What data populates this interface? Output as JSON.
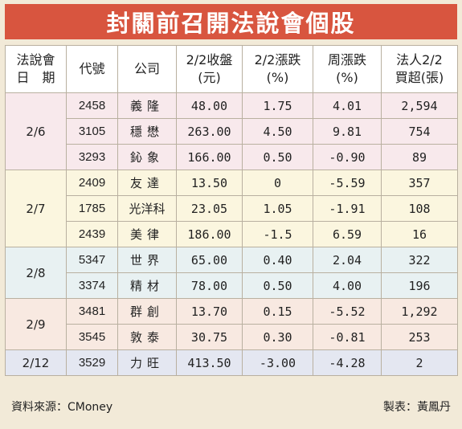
{
  "title": "封關前召開法說會個股",
  "headers": {
    "date_line1": "法說會",
    "date_line2": "日　期",
    "code": "代號",
    "company": "公司",
    "close_line1": "2/2收盤",
    "close_line2": "(元)",
    "chg_line1": "2/2漲跌",
    "chg_line2": "(%)",
    "week_line1": "周漲跌",
    "week_line2": "(%)",
    "inst_line1": "法人2/2",
    "inst_line2": "買超(張)"
  },
  "groups": [
    {
      "date": "2/6",
      "rows": [
        {
          "code": "2458",
          "company": "義隆",
          "close": "48.00",
          "chg": "1.75",
          "week": "4.01",
          "inst": "2,594"
        },
        {
          "code": "3105",
          "company": "穩懋",
          "close": "263.00",
          "chg": "4.50",
          "week": "9.81",
          "inst": "754"
        },
        {
          "code": "3293",
          "company": "鈊象",
          "close": "166.00",
          "chg": "0.50",
          "week": "-0.90",
          "inst": "89"
        }
      ]
    },
    {
      "date": "2/7",
      "rows": [
        {
          "code": "2409",
          "company": "友達",
          "close": "13.50",
          "chg": "0",
          "week": "-5.59",
          "inst": "357"
        },
        {
          "code": "1785",
          "company": "光洋科",
          "close": "23.05",
          "chg": "1.05",
          "week": "-1.91",
          "inst": "108"
        },
        {
          "code": "2439",
          "company": "美律",
          "close": "186.00",
          "chg": "-1.5",
          "week": "6.59",
          "inst": "16"
        }
      ]
    },
    {
      "date": "2/8",
      "rows": [
        {
          "code": "5347",
          "company": "世界",
          "close": "65.00",
          "chg": "0.40",
          "week": "2.04",
          "inst": "322"
        },
        {
          "code": "3374",
          "company": "精材",
          "close": "78.00",
          "chg": "0.50",
          "week": "4.00",
          "inst": "196"
        }
      ]
    },
    {
      "date": "2/9",
      "rows": [
        {
          "code": "3481",
          "company": "群創",
          "close": "13.70",
          "chg": "0.15",
          "week": "-5.52",
          "inst": "1,292"
        },
        {
          "code": "3545",
          "company": "敦泰",
          "close": "30.75",
          "chg": "0.30",
          "week": "-0.81",
          "inst": "253"
        }
      ]
    },
    {
      "date": "2/12",
      "rows": [
        {
          "code": "3529",
          "company": "力旺",
          "close": "413.50",
          "chg": "-3.00",
          "week": "-4.28",
          "inst": "2"
        }
      ]
    }
  ],
  "footer": {
    "source": "資料來源：CMoney",
    "author": "製表：黃鳳丹"
  }
}
